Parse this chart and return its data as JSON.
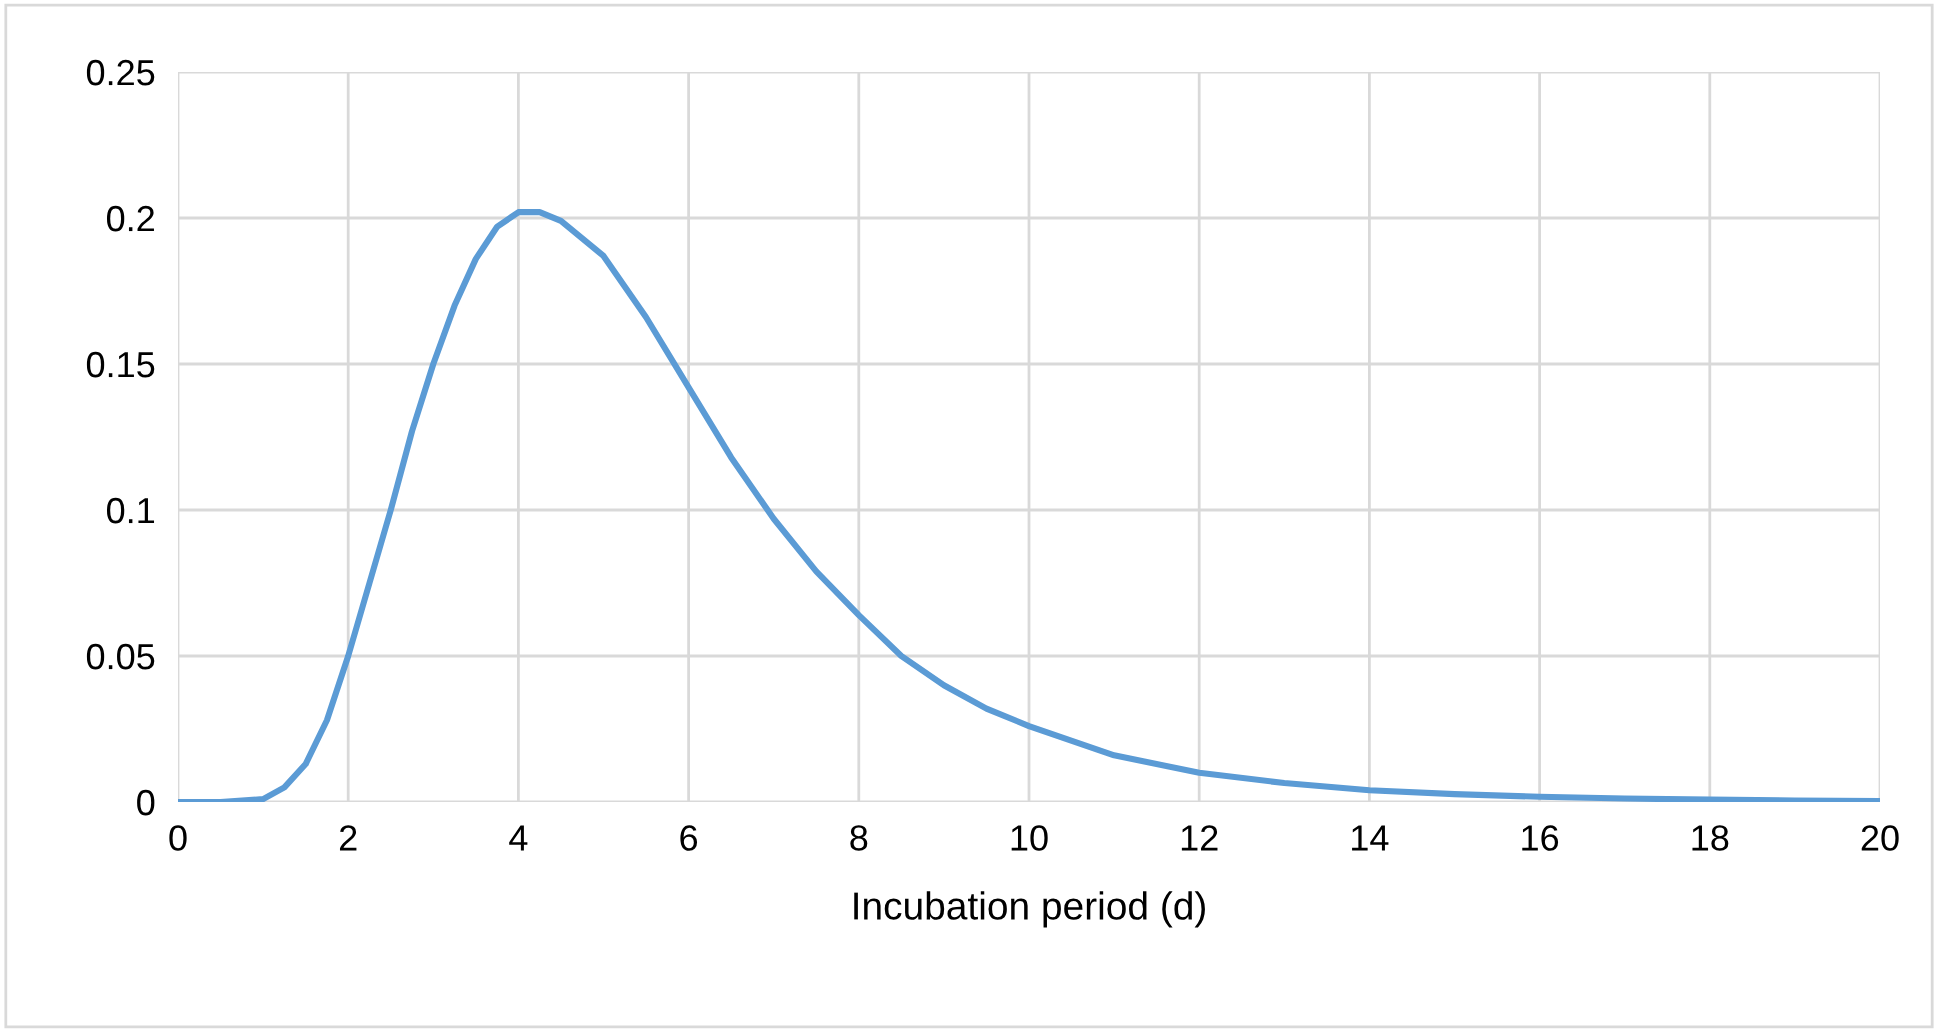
{
  "chart_data": {
    "type": "line",
    "xlabel": "Incubation period (d)",
    "x": [
      0,
      0.5,
      1,
      1.25,
      1.5,
      1.75,
      2,
      2.25,
      2.5,
      2.75,
      3,
      3.25,
      3.5,
      3.75,
      4,
      4.25,
      4.5,
      5,
      5.5,
      6,
      6.5,
      7,
      7.5,
      8,
      8.5,
      9,
      9.5,
      10,
      11,
      12,
      13,
      14,
      15,
      16,
      17,
      18,
      19,
      20
    ],
    "series": [
      {
        "color": "#5b9bd5",
        "values": [
          0,
          0,
          0.001,
          0.005,
          0.013,
          0.028,
          0.05,
          0.075,
          0.1,
          0.127,
          0.15,
          0.17,
          0.186,
          0.197,
          0.202,
          0.202,
          0.199,
          0.187,
          0.166,
          0.142,
          0.118,
          0.097,
          0.079,
          0.064,
          0.05,
          0.04,
          0.032,
          0.026,
          0.016,
          0.01,
          0.0065,
          0.004,
          0.0027,
          0.0018,
          0.0012,
          0.0008,
          0.0005,
          0.0003
        ]
      }
    ],
    "xlim": [
      0,
      20
    ],
    "xticks": [
      0,
      2,
      4,
      6,
      8,
      10,
      12,
      14,
      16,
      18,
      20
    ],
    "ylim": [
      0,
      0.25
    ],
    "yticks": [
      0,
      0.05,
      0.1,
      0.15,
      0.2,
      0.25
    ],
    "grid": true,
    "legend": false,
    "marker": "none",
    "line_style": "solid"
  }
}
